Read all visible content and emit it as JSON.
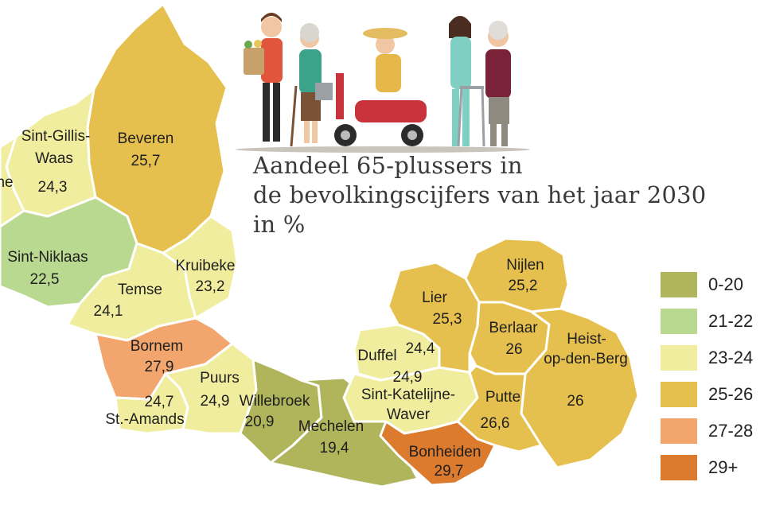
{
  "title": {
    "lines": [
      "Aandeel 65-plussers in",
      "de bevolkingscijfers van het jaar 2030",
      "in %"
    ]
  },
  "legend": [
    {
      "label": "0-20",
      "color": "#b0b45a"
    },
    {
      "label": "21-22",
      "color": "#b9d890"
    },
    {
      "label": "23-24",
      "color": "#f0ee9e"
    },
    {
      "label": "25-26",
      "color": "#e6c04e"
    },
    {
      "label": "27-28",
      "color": "#f2a56c"
    },
    {
      "label": "29+",
      "color": "#dc7a2e"
    }
  ],
  "regions": [
    {
      "id": "beveren",
      "name": "Beveren",
      "value": "25,7",
      "color": "#e6c04e"
    },
    {
      "id": "sint-gillis-waas",
      "name": "Sint-Gillis-Waas",
      "name_lines": [
        "Sint-Gillis-",
        "Waas"
      ],
      "value": "24,3",
      "color": "#f0ee9e"
    },
    {
      "id": "partial-west",
      "name_fragment": "ne",
      "color": "#f0ee9e"
    },
    {
      "id": "sint-niklaas",
      "name": "Sint-Niklaas",
      "value": "22,5",
      "color": "#b9d890"
    },
    {
      "id": "temse",
      "name": "Temse",
      "value": "24,1",
      "color": "#f0ee9e"
    },
    {
      "id": "kruibeke",
      "name": "Kruibeke",
      "value": "23,2",
      "color": "#f0ee9e"
    },
    {
      "id": "bornem",
      "name": "Bornem",
      "value": "27,9",
      "color": "#f2a56c"
    },
    {
      "id": "st-amands",
      "name": "St.-Amands",
      "value": "24,7",
      "color": "#f0ee9e"
    },
    {
      "id": "puurs",
      "name": "Puurs",
      "value": "24,9",
      "color": "#f0ee9e"
    },
    {
      "id": "willebroek",
      "name": "Willebroek",
      "value": "20,9",
      "color": "#b0b45a"
    },
    {
      "id": "mechelen",
      "name": "Mechelen",
      "value": "19,4",
      "color": "#b0b45a"
    },
    {
      "id": "duffel",
      "name": "Duffel",
      "value": "24,4",
      "color": "#f0ee9e"
    },
    {
      "id": "sint-katelijne-waver",
      "name": "Sint-Katelijne-Waver",
      "name_lines": [
        "Sint-Katelijne-",
        "Waver"
      ],
      "value": "24,9",
      "color": "#f0ee9e"
    },
    {
      "id": "lier",
      "name": "Lier",
      "value": "25,3",
      "color": "#e6c04e"
    },
    {
      "id": "nijlen",
      "name": "Nijlen",
      "value": "25,2",
      "color": "#e6c04e"
    },
    {
      "id": "berlaar",
      "name": "Berlaar",
      "value": "26",
      "color": "#e6c04e"
    },
    {
      "id": "heist-op-den-berg",
      "name": "Heist-op-den-Berg",
      "name_lines": [
        "Heist-",
        "op-den-Berg"
      ],
      "value": "26",
      "color": "#e6c04e"
    },
    {
      "id": "putte",
      "name": "Putte",
      "value": "26,6",
      "color": "#e6c04e"
    },
    {
      "id": "bonheiden",
      "name": "Bonheiden",
      "value": "29,7",
      "color": "#dc7a2e"
    }
  ]
}
